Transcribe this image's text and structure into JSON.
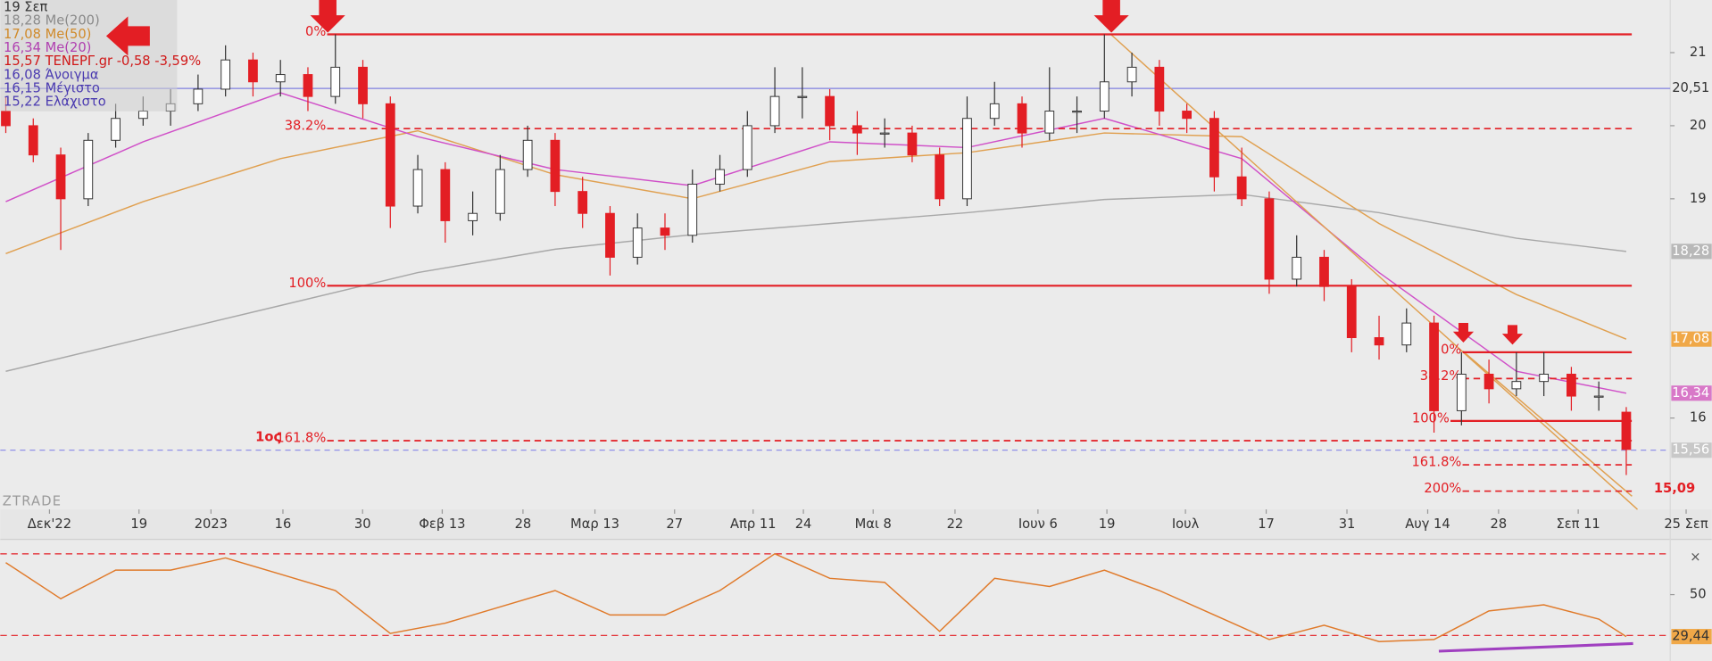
{
  "legend": [
    "19 Σεπ",
    "18,28 Me(200)",
    "17,08 Me(50)",
    "16,34 Me(20)",
    "15,57 ΤΕΝΕΡΓ.gr -0,58 -3,59%",
    "16,08 Άνοιγμα",
    "16,15 Μέγιστο",
    "15,22 Ελάχιστο"
  ],
  "chart_data": [
    {
      "type": "candlestick",
      "ohlc": [
        [
          20.2,
          20.4,
          19.9,
          20.0
        ],
        [
          20.0,
          20.1,
          19.5,
          19.6
        ],
        [
          19.6,
          19.7,
          18.3,
          19.0
        ],
        [
          19.0,
          19.9,
          18.9,
          19.8
        ],
        [
          19.8,
          20.3,
          19.7,
          20.1
        ],
        [
          20.1,
          20.4,
          20.0,
          20.2
        ],
        [
          20.2,
          20.5,
          20.0,
          20.3
        ],
        [
          20.3,
          20.7,
          20.2,
          20.5
        ],
        [
          20.5,
          21.1,
          20.4,
          20.9
        ],
        [
          20.9,
          21.0,
          20.4,
          20.6
        ],
        [
          20.6,
          20.9,
          20.4,
          20.7
        ],
        [
          20.7,
          20.8,
          20.2,
          20.4
        ],
        [
          20.4,
          21.25,
          20.3,
          20.8
        ],
        [
          20.8,
          20.9,
          20.1,
          20.3
        ],
        [
          20.3,
          20.4,
          18.6,
          18.9
        ],
        [
          18.9,
          19.6,
          18.8,
          19.4
        ],
        [
          19.4,
          19.5,
          18.4,
          18.7
        ],
        [
          18.7,
          19.1,
          18.5,
          18.8
        ],
        [
          18.8,
          19.6,
          18.7,
          19.4
        ],
        [
          19.4,
          20.0,
          19.3,
          19.8
        ],
        [
          19.8,
          19.9,
          18.9,
          19.1
        ],
        [
          19.1,
          19.3,
          18.6,
          18.8
        ],
        [
          18.8,
          18.9,
          17.95,
          18.2
        ],
        [
          18.2,
          18.8,
          18.1,
          18.6
        ],
        [
          18.6,
          18.8,
          18.3,
          18.5
        ],
        [
          18.5,
          19.4,
          18.4,
          19.2
        ],
        [
          19.2,
          19.6,
          19.1,
          19.4
        ],
        [
          19.4,
          20.2,
          19.3,
          20.0
        ],
        [
          20.0,
          20.8,
          19.9,
          20.4
        ],
        [
          20.4,
          20.8,
          20.1,
          20.4
        ],
        [
          20.4,
          20.5,
          19.8,
          20.0
        ],
        [
          20.0,
          20.2,
          19.6,
          19.9
        ],
        [
          19.9,
          20.1,
          19.7,
          19.9
        ],
        [
          19.9,
          20.0,
          19.5,
          19.6
        ],
        [
          19.6,
          19.7,
          18.9,
          19.0
        ],
        [
          19.0,
          20.4,
          18.9,
          20.1
        ],
        [
          20.1,
          20.6,
          20.0,
          20.3
        ],
        [
          20.3,
          20.4,
          19.7,
          19.9
        ],
        [
          19.9,
          20.8,
          19.8,
          20.2
        ],
        [
          20.2,
          20.4,
          19.9,
          20.2
        ],
        [
          20.2,
          21.25,
          20.1,
          20.6
        ],
        [
          20.6,
          21.0,
          20.4,
          20.8
        ],
        [
          20.8,
          20.9,
          20.0,
          20.2
        ],
        [
          20.2,
          20.3,
          19.9,
          20.1
        ],
        [
          20.1,
          20.2,
          19.1,
          19.3
        ],
        [
          19.3,
          19.7,
          18.9,
          19.0
        ],
        [
          19.0,
          19.1,
          17.7,
          17.9
        ],
        [
          17.9,
          18.5,
          17.8,
          18.2
        ],
        [
          18.2,
          18.3,
          17.6,
          17.8
        ],
        [
          17.8,
          17.9,
          16.9,
          17.1
        ],
        [
          17.1,
          17.4,
          16.8,
          17.0
        ],
        [
          17.0,
          17.5,
          16.9,
          17.3
        ],
        [
          17.3,
          17.4,
          15.8,
          16.1
        ],
        [
          16.1,
          16.9,
          15.9,
          16.6
        ],
        [
          16.6,
          16.8,
          16.2,
          16.4
        ],
        [
          16.4,
          16.9,
          16.3,
          16.5
        ],
        [
          16.5,
          16.9,
          16.3,
          16.6
        ],
        [
          16.6,
          16.7,
          16.1,
          16.3
        ],
        [
          16.3,
          16.5,
          16.1,
          16.3
        ],
        [
          16.08,
          16.15,
          15.22,
          15.57
        ]
      ],
      "colors": {
        "up": "#ffffff",
        "down": "#e31e24"
      },
      "xlim": [
        -0.2,
        60.6
      ],
      "xticks": [
        {
          "value": 1.59,
          "label": "Δεκ'22"
        },
        {
          "value": 4.85,
          "label": "19"
        },
        {
          "value": 7.47,
          "label": "2023"
        },
        {
          "value": 10.09,
          "label": "16"
        },
        {
          "value": 12.99,
          "label": "30"
        },
        {
          "value": 15.89,
          "label": "Φεβ 13"
        },
        {
          "value": 18.83,
          "label": "28"
        },
        {
          "value": 21.45,
          "label": "Μαρ 13"
        },
        {
          "value": 24.35,
          "label": "27"
        },
        {
          "value": 27.21,
          "label": "Απρ 11"
        },
        {
          "value": 29.04,
          "label": "24"
        },
        {
          "value": 31.58,
          "label": "Μαι 8"
        },
        {
          "value": 34.56,
          "label": "22"
        },
        {
          "value": 37.58,
          "label": "Ιουν 6"
        },
        {
          "value": 40.09,
          "label": "19"
        },
        {
          "value": 42.95,
          "label": "Ιουλ"
        },
        {
          "value": 45.89,
          "label": "17"
        },
        {
          "value": 48.83,
          "label": "31"
        },
        {
          "value": 51.77,
          "label": "Αυγ 14"
        },
        {
          "value": 54.35,
          "label": "28"
        },
        {
          "value": 57.25,
          "label": "Σεπ 11"
        },
        {
          "value": 61.18,
          "label": "25 Σεπ"
        }
      ],
      "ylim": [
        14.75,
        21.72
      ],
      "yticks": [
        16,
        19,
        20,
        21
      ],
      "series": [
        {
          "name": "Me(200)",
          "color": "#a8a8a8",
          "x": [
            0,
            5,
            10,
            15,
            20,
            25,
            30,
            35,
            40,
            45,
            50,
            55,
            59
          ],
          "values": [
            16.64,
            17.09,
            17.54,
            17.99,
            18.31,
            18.51,
            18.66,
            18.81,
            18.99,
            19.06,
            18.81,
            18.46,
            18.28
          ]
        },
        {
          "name": "Me(50)",
          "color": "#e0a050",
          "x": [
            0,
            5,
            10,
            15,
            20,
            25,
            30,
            35,
            40,
            45,
            50,
            55,
            59
          ],
          "values": [
            18.25,
            18.96,
            19.55,
            19.93,
            19.33,
            19.0,
            19.51,
            19.63,
            19.9,
            19.85,
            18.66,
            17.69,
            17.08
          ]
        },
        {
          "name": "Me(20)",
          "color": "#d050c8",
          "x": [
            0,
            5,
            10,
            15,
            20,
            25,
            30,
            35,
            40,
            45,
            50,
            55,
            59
          ],
          "values": [
            18.96,
            19.78,
            20.45,
            19.85,
            19.4,
            19.18,
            19.78,
            19.7,
            20.1,
            19.55,
            17.99,
            16.64,
            16.34
          ]
        }
      ],
      "price_tags": [
        {
          "value": 20.51,
          "label": "20,51",
          "color": "#8080e0",
          "line": "solid",
          "fill": "none"
        },
        {
          "value": 18.28,
          "label": "18,28",
          "color": "#a8a8a8",
          "line": "none",
          "fill": "#b8b8b8"
        },
        {
          "value": 17.08,
          "label": "17,08",
          "color": "#e0a050",
          "line": "none",
          "fill": "#f0a848"
        },
        {
          "value": 16.34,
          "label": "16,34",
          "color": "#d050c8",
          "line": "none",
          "fill": "#d878c8"
        },
        {
          "value": 15.56,
          "label": "15,56",
          "color": "#9090e8",
          "line": "dashed",
          "fill": "#c8c8c8"
        }
      ],
      "fib_levels": [
        {
          "value": 21.25,
          "label": "0%",
          "start": 11.7,
          "dashed": false
        },
        {
          "value": 19.96,
          "label": "38.2%",
          "start": 11.7,
          "dashed": true
        },
        {
          "value": 17.81,
          "label": "100%",
          "start": 11.7,
          "dashed": false
        },
        {
          "value": 15.69,
          "label": "161.8%",
          "prefix": "1ος",
          "start": 11.7,
          "dashed": true
        },
        {
          "value": 16.9,
          "label": "0%",
          "start": 53.04,
          "dashed": false
        },
        {
          "value": 16.54,
          "label": "38.2%",
          "start": 53.04,
          "dashed": true
        },
        {
          "value": 15.96,
          "label": "100%",
          "start": 52.6,
          "dashed": false
        },
        {
          "value": 15.36,
          "label": "161.8%",
          "start": 53.04,
          "dashed": true
        },
        {
          "value": 15.0,
          "label": "200%",
          "start": 53.04,
          "dashed": true
        }
      ],
      "annotation": {
        "value": 15.09,
        "label": "15,09"
      },
      "watermark": "ZTRADE"
    },
    {
      "type": "line",
      "x": [
        0,
        2,
        4,
        6,
        8,
        10,
        12,
        14,
        16,
        18,
        20,
        22,
        24,
        26,
        28,
        30,
        32,
        34,
        36,
        38,
        40,
        42,
        44,
        46,
        48,
        50,
        52,
        54,
        56,
        58,
        59
      ],
      "values": [
        65.7,
        48,
        62,
        62,
        68,
        60,
        52,
        31,
        36,
        44,
        52,
        40,
        40,
        52,
        70,
        58,
        56,
        32,
        58,
        54,
        62,
        52,
        40,
        28,
        35,
        27,
        28,
        42,
        45,
        38,
        29.44
      ],
      "color": "#e07a2a",
      "ylim": [
        19.6,
        76.8
      ],
      "yticks": [
        50
      ],
      "levels": [
        70,
        30
      ],
      "price_tags": [
        {
          "value": 29.44,
          "label": "29,44"
        }
      ]
    }
  ]
}
